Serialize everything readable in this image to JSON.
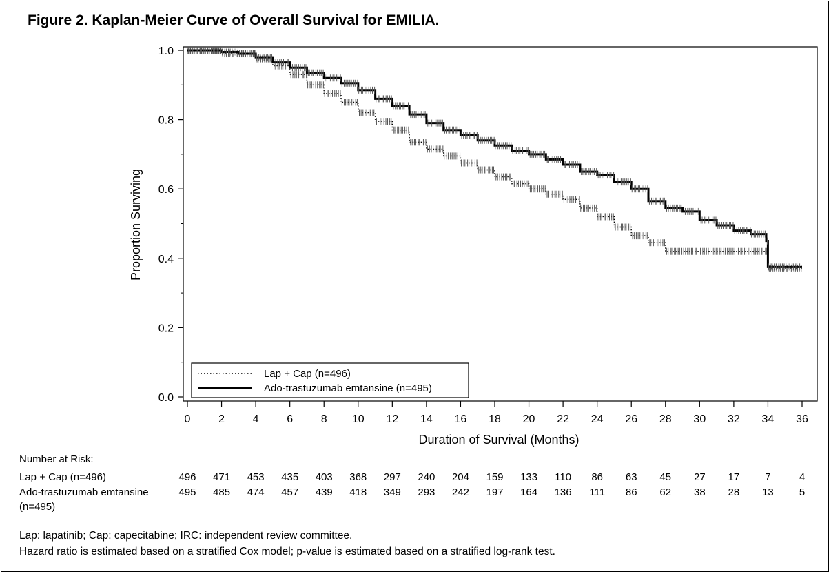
{
  "figure_title": "Figure 2. Kaplan-Meier Curve of Overall Survival for EMILIA.",
  "colors": {
    "line": "#000000",
    "censor": "#555555",
    "background": "#ffffff"
  },
  "chart_data": {
    "type": "line",
    "title": "Figure 2. Kaplan-Meier Curve of Overall Survival for EMILIA.",
    "xlabel": "Duration of Survival (Months)",
    "ylabel": "Proportion Surviving",
    "xlim": [
      0,
      36
    ],
    "ylim": [
      0,
      1
    ],
    "x_ticks": [
      0,
      2,
      4,
      6,
      8,
      10,
      12,
      14,
      16,
      18,
      20,
      22,
      24,
      26,
      28,
      30,
      32,
      34,
      36
    ],
    "y_ticks": [
      0.0,
      0.2,
      0.4,
      0.6,
      0.8,
      1.0
    ],
    "y_tick_labels": [
      "0.0",
      "0.2",
      "0.4",
      "0.6",
      "0.8",
      "1.0"
    ],
    "legend_position": "bottom-left",
    "grid": false,
    "series": [
      {
        "name": "Lap + Cap (n=496)",
        "style": "dotted",
        "x": [
          0,
          2,
          4,
          5,
          6,
          7,
          8,
          9,
          10,
          11,
          12,
          13,
          14,
          15,
          16,
          17,
          18,
          19,
          20,
          21,
          22,
          23,
          24,
          25,
          26,
          27,
          28,
          29,
          30,
          31,
          32,
          33,
          33.9,
          34,
          36
        ],
        "y": [
          1.0,
          0.99,
          0.975,
          0.955,
          0.93,
          0.9,
          0.875,
          0.85,
          0.82,
          0.795,
          0.77,
          0.735,
          0.715,
          0.695,
          0.675,
          0.655,
          0.635,
          0.615,
          0.6,
          0.585,
          0.57,
          0.545,
          0.52,
          0.49,
          0.465,
          0.445,
          0.42,
          0.42,
          0.42,
          0.42,
          0.42,
          0.42,
          0.42,
          0.37,
          0.37
        ]
      },
      {
        "name": "Ado-trastuzumab emtansine (n=495)",
        "style": "solid",
        "x": [
          0,
          2,
          3,
          4,
          5,
          6,
          7,
          8,
          9,
          10,
          11,
          12,
          13,
          14,
          15,
          16,
          17,
          18,
          19,
          20,
          21,
          22,
          23,
          24,
          25,
          26,
          27,
          28,
          29,
          30,
          31,
          32,
          33,
          33.9,
          34,
          36
        ],
        "y": [
          1.0,
          0.995,
          0.99,
          0.98,
          0.965,
          0.95,
          0.935,
          0.92,
          0.905,
          0.885,
          0.86,
          0.84,
          0.815,
          0.79,
          0.77,
          0.755,
          0.74,
          0.725,
          0.71,
          0.7,
          0.685,
          0.67,
          0.65,
          0.64,
          0.62,
          0.6,
          0.565,
          0.545,
          0.535,
          0.51,
          0.495,
          0.48,
          0.47,
          0.45,
          0.375,
          0.375
        ]
      }
    ],
    "risk_table": {
      "header": "Number at Risk:",
      "times": [
        0,
        2,
        4,
        6,
        8,
        10,
        12,
        14,
        16,
        18,
        20,
        22,
        24,
        26,
        28,
        30,
        32,
        34,
        36
      ],
      "rows": [
        {
          "label": "Lap + Cap (n=496)",
          "label_line2": "",
          "values": [
            496,
            471,
            453,
            435,
            403,
            368,
            297,
            240,
            204,
            159,
            133,
            110,
            86,
            63,
            45,
            27,
            17,
            7,
            4
          ]
        },
        {
          "label": "Ado-trastuzumab emtansine",
          "label_line2": "(n=495)",
          "values": [
            495,
            485,
            474,
            457,
            439,
            418,
            349,
            293,
            242,
            197,
            164,
            136,
            111,
            86,
            62,
            38,
            28,
            13,
            5
          ]
        }
      ]
    }
  },
  "footnotes": [
    "Lap: lapatinib; Cap: capecitabine; IRC: independent review committee.",
    "Hazard ratio is estimated based on a stratified Cox model; p-value is estimated based on a stratified log-rank test."
  ]
}
